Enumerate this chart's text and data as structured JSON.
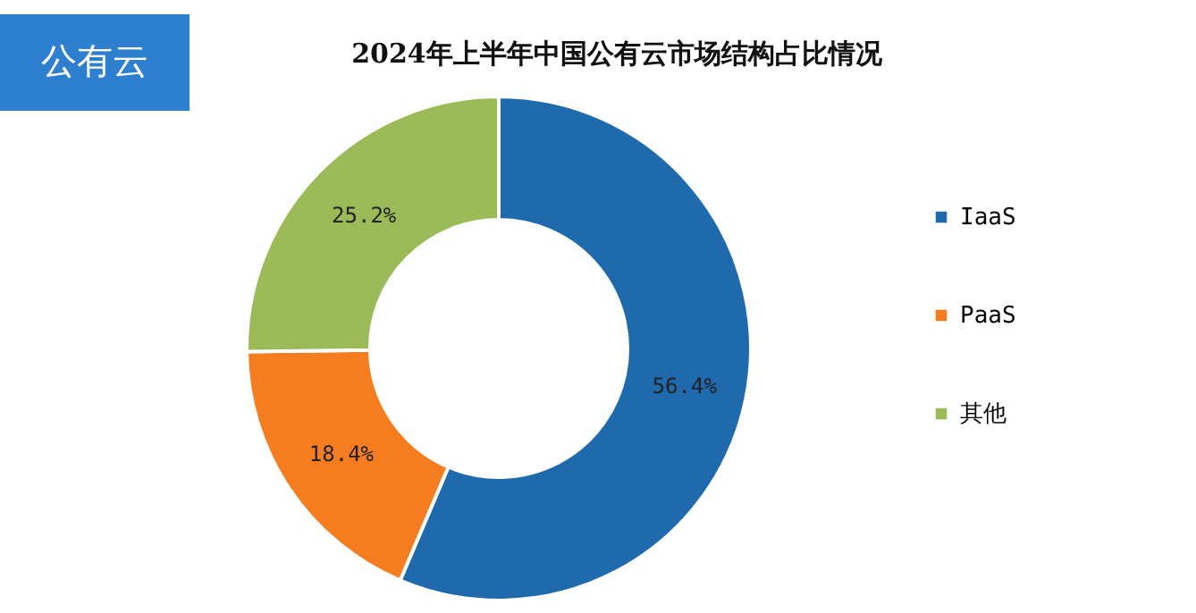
{
  "chart_data": {
    "type": "donut",
    "title": "2024年上半年中国公有云市场结构占比情况",
    "categories": [
      "IaaS",
      "PaaS",
      "其他"
    ],
    "values": [
      56.4,
      18.4,
      25.2
    ],
    "colors": [
      "#1f6aad",
      "#f57d20",
      "#9bbb59"
    ],
    "value_labels": [
      "56.4%",
      "18.4%",
      "25.2%"
    ],
    "legend": "right",
    "annotations": [
      "公有云"
    ]
  }
}
